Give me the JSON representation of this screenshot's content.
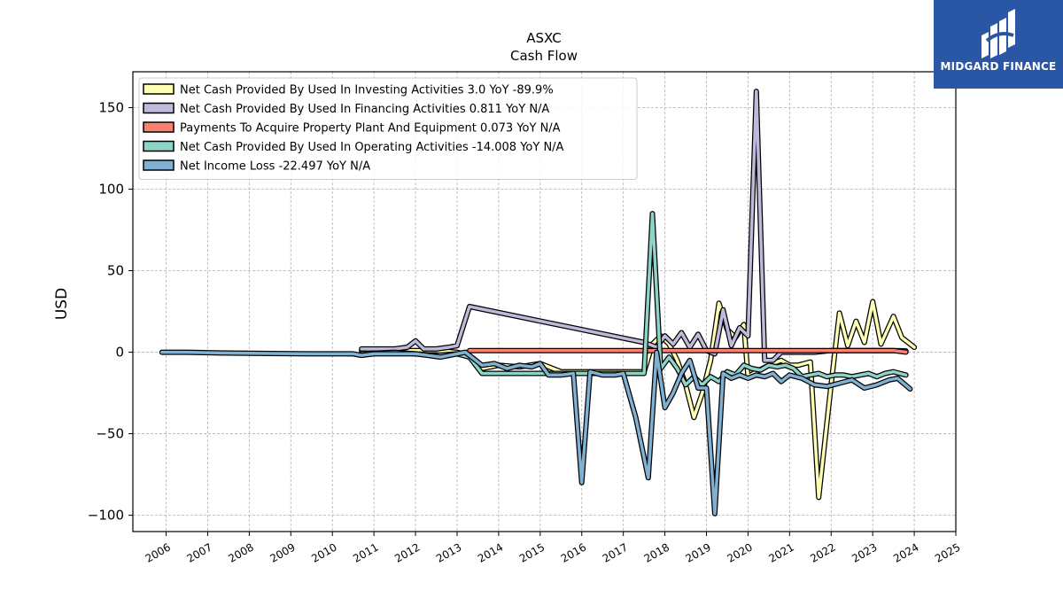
{
  "title": "ASXC",
  "subtitle": "Cash Flow",
  "logo": {
    "text": "MIDGARD FINANCE",
    "bg_color": "#2a57a5"
  },
  "chart_data": {
    "type": "line",
    "ylabel": "USD",
    "xlabel": "",
    "xlim": [
      2005.2,
      2025.0
    ],
    "ylim": [
      -110,
      172
    ],
    "x_ticks": [
      "2006",
      "2007",
      "2008",
      "2009",
      "2010",
      "2011",
      "2012",
      "2013",
      "2014",
      "2015",
      "2016",
      "2017",
      "2018",
      "2019",
      "2020",
      "2021",
      "2022",
      "2023",
      "2024",
      "2025"
    ],
    "y_ticks": [
      150,
      100,
      50,
      0,
      -50,
      -100
    ],
    "y_tick_labels": [
      "150",
      "100",
      "50",
      "0",
      "−50",
      "−100"
    ],
    "grid": true,
    "legend_position": "top-left",
    "series": [
      {
        "name": "Net Cash Provided By Used In Investing Activities  3.0 YoY -89.9%",
        "color": "#ffffb3",
        "points": [
          [
            2010.7,
            1
          ],
          [
            2011.5,
            1
          ],
          [
            2012.0,
            1
          ],
          [
            2012.5,
            1
          ],
          [
            2013.0,
            0
          ],
          [
            2013.3,
            -2
          ],
          [
            2013.6,
            -10
          ],
          [
            2014.0,
            -8
          ],
          [
            2014.5,
            -9
          ],
          [
            2015.0,
            -7
          ],
          [
            2015.5,
            -12
          ],
          [
            2016.0,
            -12
          ],
          [
            2016.5,
            -12
          ],
          [
            2017.0,
            -12
          ],
          [
            2017.5,
            -12
          ],
          [
            2017.7,
            5
          ],
          [
            2017.9,
            10
          ],
          [
            2018.1,
            5
          ],
          [
            2018.3,
            -5
          ],
          [
            2018.5,
            -20
          ],
          [
            2018.7,
            -40
          ],
          [
            2018.9,
            -25
          ],
          [
            2019.1,
            -5
          ],
          [
            2019.3,
            30
          ],
          [
            2019.5,
            14
          ],
          [
            2019.7,
            9
          ],
          [
            2019.9,
            17
          ],
          [
            2020.0,
            -15
          ],
          [
            2020.2,
            -12
          ],
          [
            2020.5,
            -8
          ],
          [
            2020.8,
            -5
          ],
          [
            2021.0,
            -8
          ],
          [
            2021.2,
            -8
          ],
          [
            2021.5,
            -6
          ],
          [
            2021.7,
            -89
          ],
          [
            2022.0,
            -20
          ],
          [
            2022.2,
            24
          ],
          [
            2022.4,
            4
          ],
          [
            2022.6,
            19
          ],
          [
            2022.8,
            6
          ],
          [
            2023.0,
            31
          ],
          [
            2023.2,
            5
          ],
          [
            2023.5,
            22
          ],
          [
            2023.7,
            9
          ],
          [
            2024.0,
            3.0
          ]
        ]
      },
      {
        "name": "Net Cash Provided By Used In Financing Activities  0.811 YoY N/A",
        "color": "#bebada",
        "points": [
          [
            2010.7,
            2
          ],
          [
            2011.5,
            2
          ],
          [
            2011.8,
            3
          ],
          [
            2012.0,
            7
          ],
          [
            2012.2,
            2
          ],
          [
            2012.5,
            2
          ],
          [
            2012.8,
            3
          ],
          [
            2013.0,
            4
          ],
          [
            2013.3,
            28
          ],
          [
            2017.5,
            6
          ],
          [
            2017.8,
            3
          ],
          [
            2018.0,
            10
          ],
          [
            2018.2,
            5
          ],
          [
            2018.4,
            12
          ],
          [
            2018.6,
            3
          ],
          [
            2018.8,
            11
          ],
          [
            2019.0,
            1
          ],
          [
            2019.2,
            -1
          ],
          [
            2019.4,
            26
          ],
          [
            2019.6,
            4
          ],
          [
            2019.8,
            15
          ],
          [
            2020.0,
            10
          ],
          [
            2020.2,
            160
          ],
          [
            2020.4,
            -5
          ],
          [
            2020.6,
            -5
          ],
          [
            2020.8,
            0
          ],
          [
            2021.0,
            0
          ],
          [
            2021.3,
            0
          ],
          [
            2021.6,
            0
          ],
          [
            2022.0,
            1
          ],
          [
            2022.3,
            1
          ],
          [
            2022.6,
            1
          ],
          [
            2022.9,
            1
          ],
          [
            2023.2,
            1
          ],
          [
            2023.5,
            1
          ],
          [
            2023.8,
            0.811
          ]
        ]
      },
      {
        "name": "Payments To Acquire Property Plant And Equipment  0.073 YoY N/A",
        "color": "#fb8072",
        "points": [
          [
            2013.3,
            1
          ],
          [
            2014.0,
            1
          ],
          [
            2014.5,
            1
          ],
          [
            2015.0,
            1
          ],
          [
            2015.5,
            1
          ],
          [
            2016.0,
            1
          ],
          [
            2016.5,
            1
          ],
          [
            2017.0,
            1
          ],
          [
            2017.5,
            1
          ],
          [
            2018.0,
            1
          ],
          [
            2018.5,
            1
          ],
          [
            2019.0,
            1
          ],
          [
            2019.5,
            1
          ],
          [
            2020.0,
            1
          ],
          [
            2020.5,
            1
          ],
          [
            2021.0,
            1
          ],
          [
            2021.5,
            1
          ],
          [
            2022.0,
            1
          ],
          [
            2022.5,
            1
          ],
          [
            2023.0,
            1
          ],
          [
            2023.5,
            1
          ],
          [
            2023.8,
            0.073
          ]
        ]
      },
      {
        "name": "Net Cash Provided By Used In Operating Activities  -14.008 YoY N/A",
        "color": "#8dd3c7",
        "points": [
          [
            2010.7,
            -1
          ],
          [
            2011.5,
            0
          ],
          [
            2012.0,
            -1
          ],
          [
            2012.5,
            -2
          ],
          [
            2013.0,
            -1
          ],
          [
            2013.3,
            -3
          ],
          [
            2013.6,
            -13
          ],
          [
            2014.0,
            -13
          ],
          [
            2014.5,
            -13
          ],
          [
            2015.0,
            -13
          ],
          [
            2015.5,
            -13
          ],
          [
            2016.0,
            -13
          ],
          [
            2016.5,
            -13
          ],
          [
            2017.0,
            -13
          ],
          [
            2017.5,
            -13
          ],
          [
            2017.7,
            85
          ],
          [
            2017.9,
            -10
          ],
          [
            2018.1,
            -3
          ],
          [
            2018.3,
            -10
          ],
          [
            2018.5,
            -20
          ],
          [
            2018.7,
            -15
          ],
          [
            2018.9,
            -20
          ],
          [
            2019.1,
            -15
          ],
          [
            2019.3,
            -18
          ],
          [
            2019.5,
            -12
          ],
          [
            2019.7,
            -14
          ],
          [
            2019.9,
            -8
          ],
          [
            2020.1,
            -10
          ],
          [
            2020.3,
            -11
          ],
          [
            2020.5,
            -8
          ],
          [
            2020.7,
            -9
          ],
          [
            2020.9,
            -8
          ],
          [
            2021.1,
            -10
          ],
          [
            2021.3,
            -15
          ],
          [
            2021.5,
            -14
          ],
          [
            2021.7,
            -13
          ],
          [
            2021.9,
            -15
          ],
          [
            2022.1,
            -14
          ],
          [
            2022.3,
            -14
          ],
          [
            2022.5,
            -15
          ],
          [
            2022.7,
            -14
          ],
          [
            2022.9,
            -13
          ],
          [
            2023.1,
            -15
          ],
          [
            2023.3,
            -13
          ],
          [
            2023.5,
            -12
          ],
          [
            2023.8,
            -14.008
          ]
        ]
      },
      {
        "name": "Net Income Loss  -22.497 YoY N/A",
        "color": "#80b1d3",
        "points": [
          [
            2005.9,
            0
          ],
          [
            2006.5,
            0
          ],
          [
            2007.5,
            -0.5
          ],
          [
            2008.5,
            -0.8
          ],
          [
            2009.5,
            -1
          ],
          [
            2010.0,
            -1
          ],
          [
            2010.5,
            -1
          ],
          [
            2010.7,
            -2
          ],
          [
            2011.0,
            -1
          ],
          [
            2011.5,
            -1
          ],
          [
            2012.0,
            -1
          ],
          [
            2012.3,
            -2
          ],
          [
            2012.6,
            -3
          ],
          [
            2013.0,
            -1
          ],
          [
            2013.2,
            0
          ],
          [
            2013.4,
            -4
          ],
          [
            2013.6,
            -8
          ],
          [
            2013.9,
            -7
          ],
          [
            2014.2,
            -10
          ],
          [
            2014.5,
            -8
          ],
          [
            2014.8,
            -9
          ],
          [
            2015.0,
            -7
          ],
          [
            2015.2,
            -14
          ],
          [
            2015.5,
            -14
          ],
          [
            2015.8,
            -13
          ],
          [
            2016.0,
            -80
          ],
          [
            2016.2,
            -12
          ],
          [
            2016.5,
            -14
          ],
          [
            2016.8,
            -14
          ],
          [
            2017.0,
            -13
          ],
          [
            2017.3,
            -40
          ],
          [
            2017.6,
            -77
          ],
          [
            2017.8,
            0
          ],
          [
            2018.0,
            -34
          ],
          [
            2018.2,
            -25
          ],
          [
            2018.4,
            -13
          ],
          [
            2018.6,
            -5
          ],
          [
            2018.8,
            -22
          ],
          [
            2019.0,
            -22
          ],
          [
            2019.2,
            -99
          ],
          [
            2019.4,
            -13
          ],
          [
            2019.6,
            -16
          ],
          [
            2019.8,
            -14
          ],
          [
            2020.0,
            -16
          ],
          [
            2020.2,
            -14
          ],
          [
            2020.4,
            -15
          ],
          [
            2020.6,
            -13
          ],
          [
            2020.8,
            -18
          ],
          [
            2021.0,
            -14
          ],
          [
            2021.3,
            -16
          ],
          [
            2021.6,
            -20
          ],
          [
            2021.9,
            -21
          ],
          [
            2022.2,
            -19
          ],
          [
            2022.5,
            -17
          ],
          [
            2022.8,
            -22
          ],
          [
            2023.1,
            -20
          ],
          [
            2023.4,
            -17
          ],
          [
            2023.6,
            -16
          ],
          [
            2023.9,
            -22.497
          ]
        ]
      }
    ]
  }
}
